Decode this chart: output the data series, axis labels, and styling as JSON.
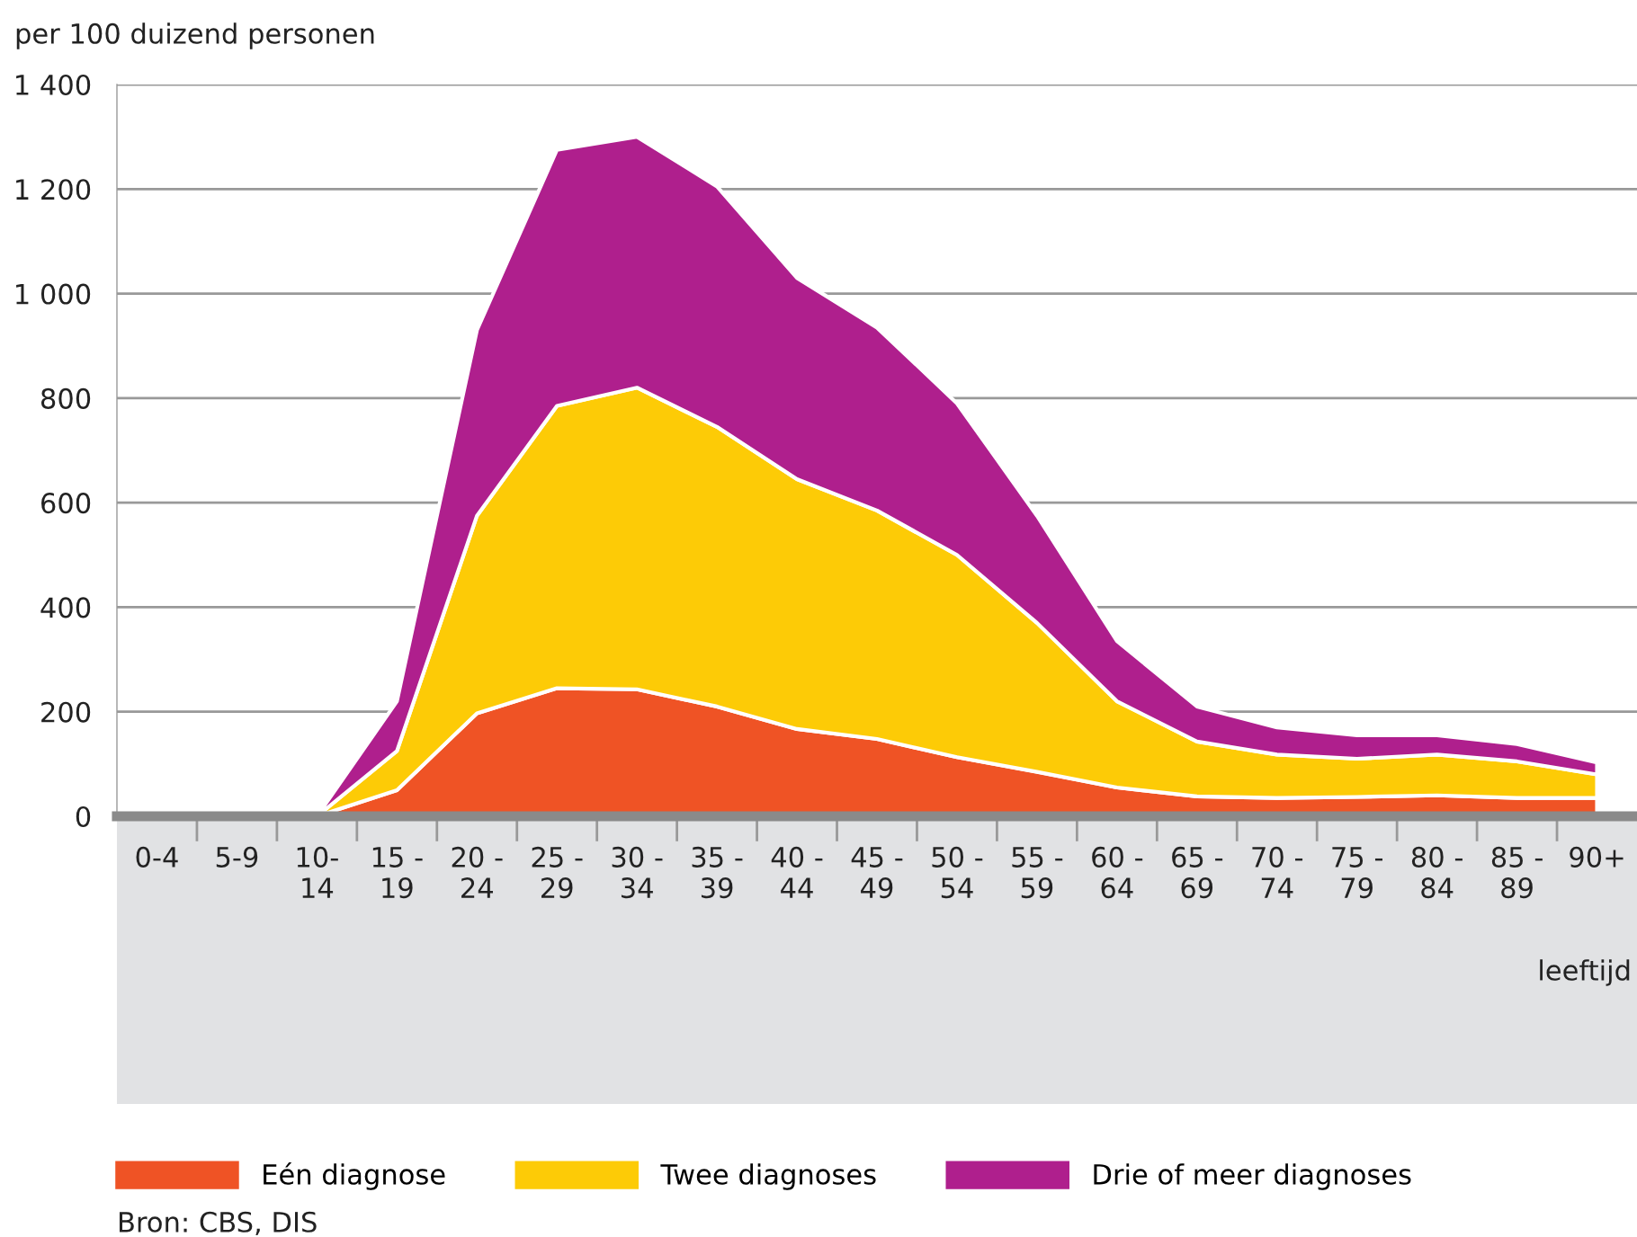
{
  "chart_data": {
    "type": "area",
    "stacked": true,
    "ylabel": "per 100 duizend personen",
    "xlabel": "leeftijd",
    "categories": [
      "0-4",
      "5-9",
      "10-\n14",
      "15 -\n19",
      "20 -\n24",
      "25 -\n29",
      "30 -\n34",
      "35 -\n39",
      "40 -\n44",
      "45 -\n49",
      "50 -\n54",
      "55 -\n59",
      "60 -\n64",
      "65 -\n69",
      "70 -\n74",
      "75 -\n79",
      "80 -\n84",
      "85 -\n89",
      "90+"
    ],
    "series": [
      {
        "name": "Eén diagnose",
        "color": "#ef5325",
        "values": [
          0,
          0,
          0,
          50,
          197,
          245,
          243,
          210,
          167,
          148,
          113,
          85,
          55,
          38,
          35,
          37,
          40,
          35,
          35
        ]
      },
      {
        "name": "Twee diagnoses",
        "color": "#fdcb06",
        "values": [
          0,
          0,
          0,
          75,
          378,
          540,
          577,
          535,
          478,
          437,
          387,
          285,
          165,
          105,
          83,
          73,
          78,
          70,
          45
        ]
      },
      {
        "name": "Drie of meer diagnoses",
        "color": "#af1f8d",
        "values": [
          0,
          0,
          0,
          95,
          355,
          490,
          480,
          460,
          385,
          350,
          290,
          205,
          115,
          67,
          52,
          45,
          37,
          33,
          23
        ]
      }
    ],
    "ylim": [
      0,
      1400
    ],
    "yticks": [
      0,
      200,
      400,
      600,
      800,
      {
        "value": 1000,
        "label": "1 000"
      },
      {
        "value": 1200,
        "label": "1 200"
      },
      {
        "value": 1400,
        "label": "1 400"
      }
    ],
    "grid": "y",
    "legend": "bottom",
    "annotations": [
      "Bron: CBS, DIS"
    ]
  }
}
